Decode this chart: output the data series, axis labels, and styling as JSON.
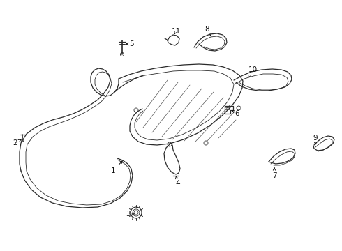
{
  "bg_color": "#ffffff",
  "line_color": "#2a2a2a",
  "lw": 0.9,
  "tlw": 0.6
}
